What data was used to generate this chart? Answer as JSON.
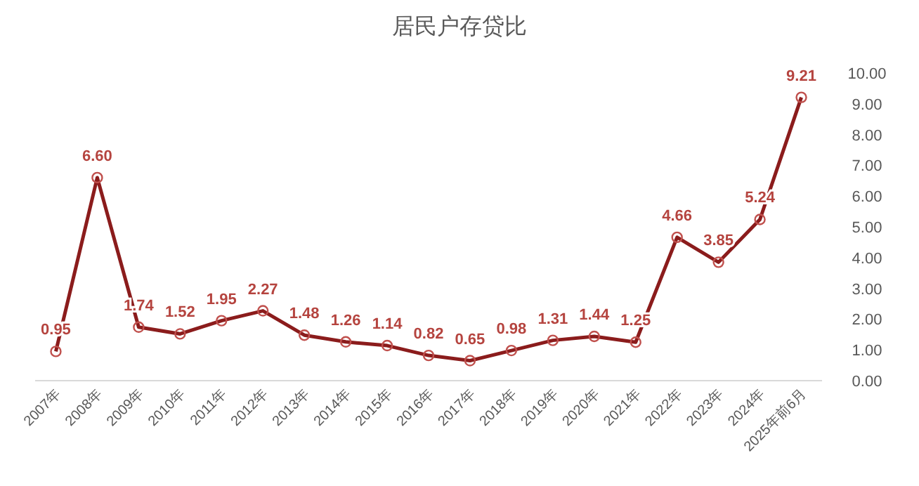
{
  "chart_data": {
    "type": "line",
    "title": "居民户存贷比",
    "categories": [
      "2007年",
      "2008年",
      "2009年",
      "2010年",
      "2011年",
      "2012年",
      "2013年",
      "2014年",
      "2015年",
      "2016年",
      "2017年",
      "2018年",
      "2019年",
      "2020年",
      "2021年",
      "2022年",
      "2023年",
      "2024年",
      "2025年前6月"
    ],
    "series": [
      {
        "color": "#8b1c1c",
        "values": [
          0.95,
          6.6,
          1.74,
          1.52,
          1.95,
          2.27,
          1.48,
          1.26,
          1.14,
          0.82,
          0.65,
          0.98,
          1.31,
          1.44,
          1.25,
          4.66,
          3.85,
          5.24,
          9.21
        ],
        "value_labels": [
          "0.95",
          "6.60",
          "1.74",
          "1.52",
          "1.95",
          "2.27",
          "1.48",
          "1.26",
          "1.14",
          "0.82",
          "0.65",
          "0.98",
          "1.31",
          "1.44",
          "1.25",
          "4.66",
          "3.85",
          "5.24",
          "9.21"
        ]
      }
    ],
    "ylim": [
      0,
      10
    ],
    "yticks": [
      {
        "value": 0,
        "label": "0.00"
      },
      {
        "value": 1,
        "label": "1.00"
      },
      {
        "value": 2,
        "label": "2.00"
      },
      {
        "value": 3,
        "label": "3.00"
      },
      {
        "value": 4,
        "label": "4.00"
      },
      {
        "value": 5,
        "label": "5.00"
      },
      {
        "value": 6,
        "label": "6.00"
      },
      {
        "value": 7,
        "label": "7.00"
      },
      {
        "value": 8,
        "label": "8.00"
      },
      {
        "value": 9,
        "label": "9.00"
      },
      {
        "value": 10,
        "label": "10.00"
      }
    ],
    "marker": "circle",
    "grid": false
  }
}
